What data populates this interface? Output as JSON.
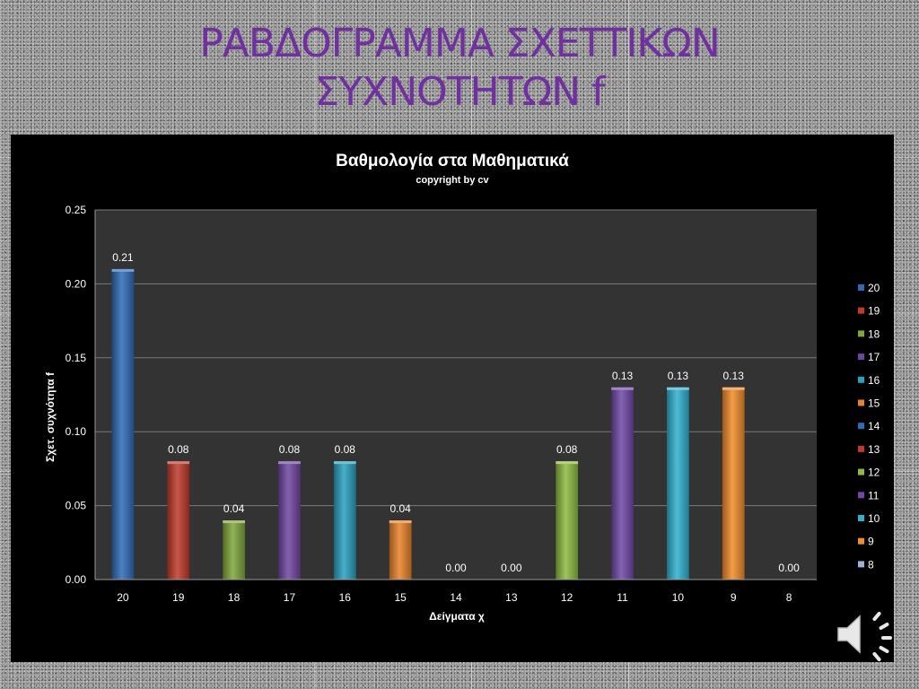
{
  "slide": {
    "title_line1": "ΡΑΒΔΟΓΡΑΜΜΑ ΣΧΕΤΤΙΚΩΝ",
    "title_line2": "ΣΥΧΝΟΤΗΤΩΝ  f",
    "title_color": "#7030a0",
    "audio_icon": "speaker-icon"
  },
  "chart_data": {
    "type": "bar",
    "title": "Βαθμολογία  στα  Μαθηματικά",
    "subtitle": "copyright  by  cv",
    "xlabel": "Δείγματα  χ",
    "ylabel": "Σχετ. συχνότητα   f",
    "ylim": [
      0,
      0.25
    ],
    "yticks": [
      "0.00",
      "0.05",
      "0.10",
      "0.15",
      "0.20",
      "0.25"
    ],
    "grid": true,
    "legend_position": "right",
    "categories": [
      "20",
      "19",
      "18",
      "17",
      "16",
      "15",
      "14",
      "13",
      "12",
      "11",
      "10",
      "9",
      "8"
    ],
    "values": [
      0.21,
      0.08,
      0.04,
      0.08,
      0.08,
      0.04,
      0.0,
      0.0,
      0.08,
      0.13,
      0.13,
      0.13,
      0.0
    ],
    "data_labels": [
      "0.21",
      "0.08",
      "0.04",
      "0.08",
      "0.08",
      "0.04",
      "0.00",
      "0.00",
      "0.08",
      "0.13",
      "0.13",
      "0.13",
      "0.00"
    ],
    "colors": [
      "#2e6bb6",
      "#c0392b",
      "#7fa63a",
      "#6f45a0",
      "#2aa0c0",
      "#e8822a",
      "#2e6bb6",
      "#c0392b",
      "#8dbb3f",
      "#7048a8",
      "#2fb0d0",
      "#f08c2a",
      "#9bb3d8"
    ],
    "background": "#000000",
    "plot_background": "#333333"
  }
}
